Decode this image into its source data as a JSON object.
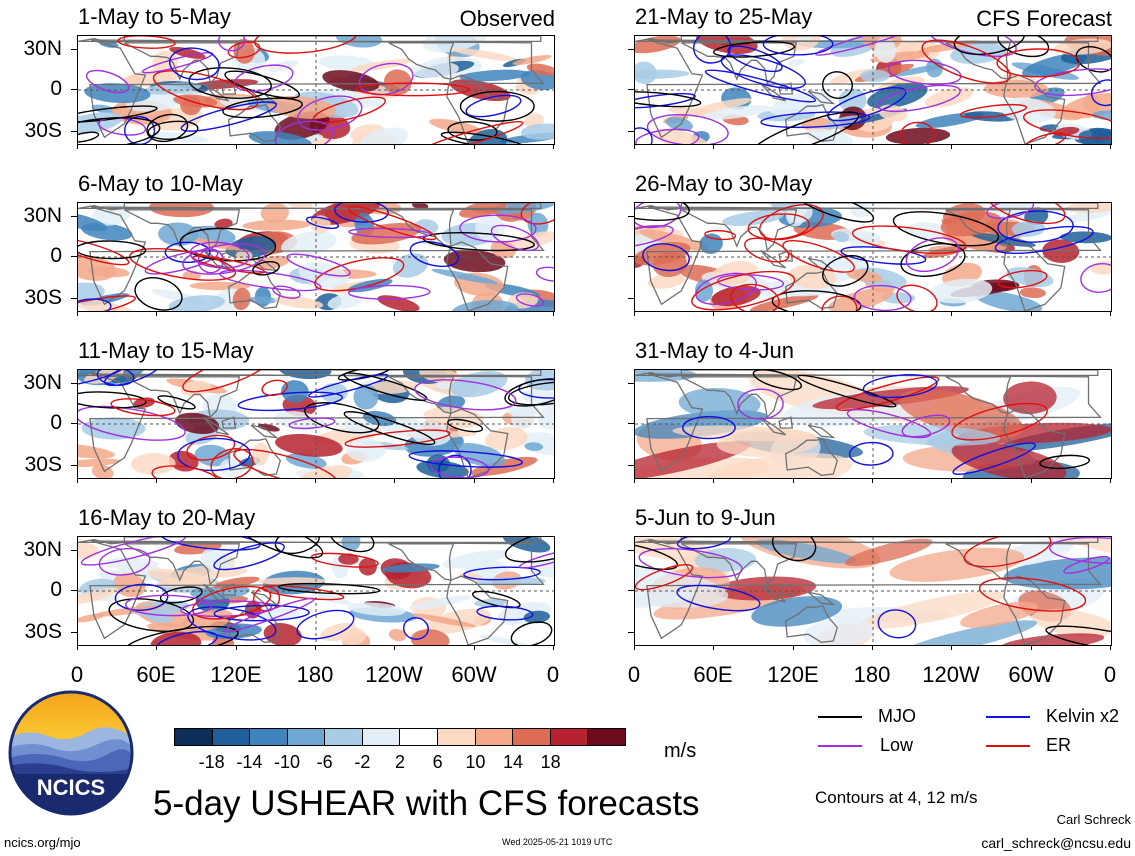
{
  "panels": [
    {
      "title": "1-May to 5-May",
      "tag": "Observed"
    },
    {
      "title": "21-May to 25-May",
      "tag": "CFS Forecast"
    },
    {
      "title": "6-May to 10-May",
      "tag": ""
    },
    {
      "title": "26-May to 30-May",
      "tag": ""
    },
    {
      "title": "11-May to 15-May",
      "tag": ""
    },
    {
      "title": "31-May to 4-Jun",
      "tag": ""
    },
    {
      "title": "16-May to 20-May",
      "tag": ""
    },
    {
      "title": "5-Jun to 9-Jun",
      "tag": ""
    }
  ],
  "y_labels": [
    "30N",
    "0",
    "30S"
  ],
  "x_labels": [
    "0",
    "60E",
    "120E",
    "180",
    "120W",
    "60W",
    "0"
  ],
  "colorbar": {
    "colors": [
      "#0c2f5a",
      "#1f5f9a",
      "#3f84bd",
      "#6ea7d2",
      "#a8cbe6",
      "#e3eef7",
      "#ffffff",
      "#fcd9c3",
      "#f3a889",
      "#dd6c55",
      "#b6222f",
      "#6e0a1e"
    ],
    "labels": [
      "-18",
      "-14",
      "-10",
      "-6",
      "-2",
      "2",
      "6",
      "10",
      "14",
      "18"
    ],
    "unit": "m/s"
  },
  "legend": {
    "items": [
      {
        "label": "MJO",
        "color": "#000000"
      },
      {
        "label": "Kelvin x2",
        "color": "#1010e0"
      },
      {
        "label": "Low",
        "color": "#a030e0"
      },
      {
        "label": "ER",
        "color": "#e01010"
      }
    ],
    "contours_note": "Contours at 4, 12 m/s"
  },
  "main_title": "5-day USHEAR with CFS forecasts",
  "logo_text": "NCICS",
  "footer": {
    "left": "ncics.org/mjo",
    "center": "Wed 2025-05-21 1019 UTC",
    "author": "Carl Schreck",
    "email": "carl_schreck@ncsu.edu"
  }
}
